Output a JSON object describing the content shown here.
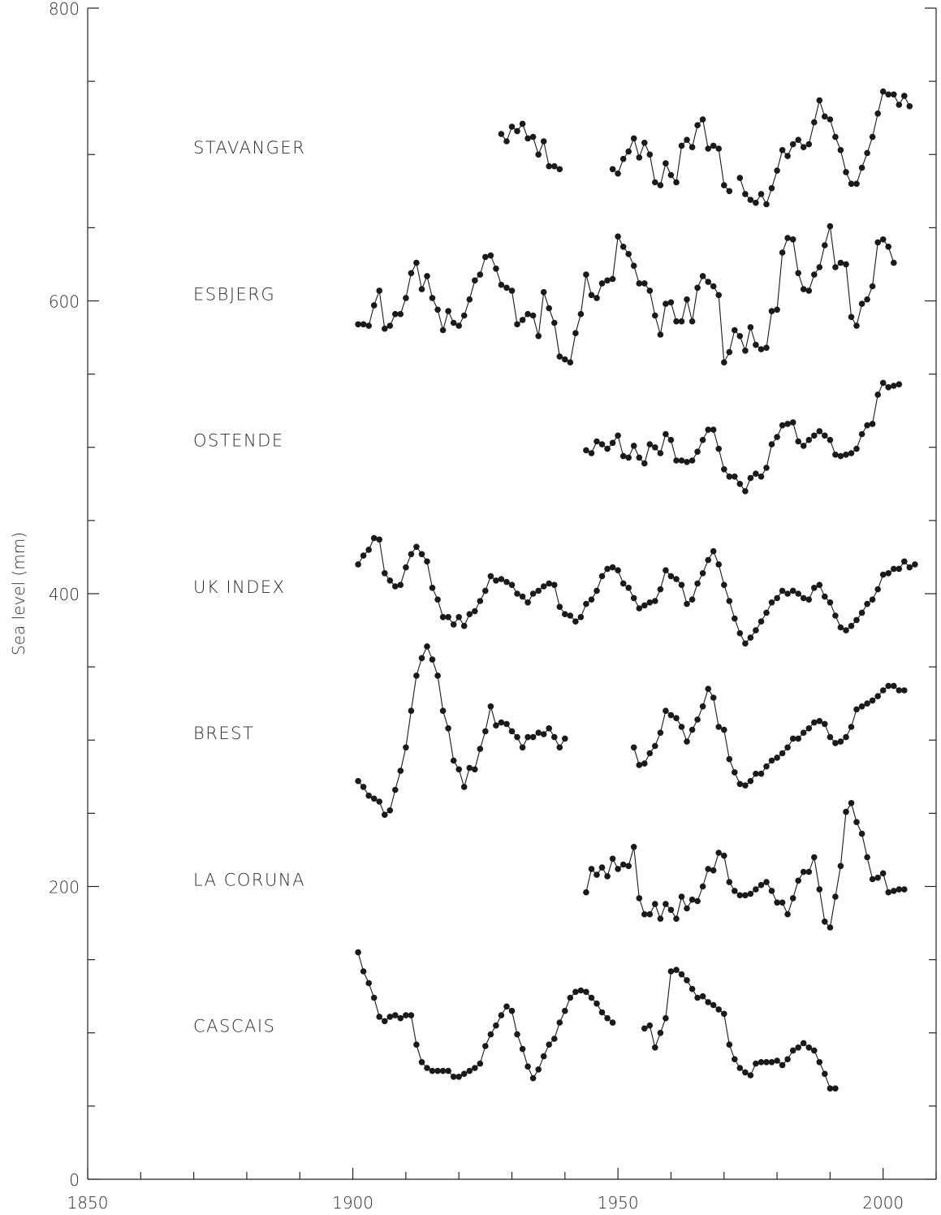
{
  "chart_data": {
    "type": "line",
    "title": "",
    "xlabel": "",
    "ylabel": "Sea level (mm)",
    "xlim": [
      1850,
      2010
    ],
    "ylim": [
      0,
      800
    ],
    "x_ticks": [
      1850,
      1900,
      1950,
      2000
    ],
    "y_ticks": [
      0,
      200,
      400,
      600,
      800
    ],
    "x_tick_labels": [
      "1850",
      "1900",
      "1950",
      "2000"
    ],
    "y_tick_labels": [
      "0",
      "200",
      "400",
      "600",
      "800"
    ],
    "grid": false,
    "marker": "filled-circle",
    "series": [
      {
        "name": "STAVANGER",
        "label_y": 705,
        "x": [
          1928,
          1929,
          1930,
          1931,
          1932,
          1933,
          1934,
          1935,
          1936,
          1937,
          1938,
          1939,
          null,
          1949,
          1950,
          1951,
          1952,
          1953,
          1954,
          1955,
          1956,
          1957,
          1958,
          1959,
          1960,
          1961,
          1962,
          1963,
          1964,
          1965,
          1966,
          1967,
          1968,
          1969,
          1970,
          1971,
          null,
          1973,
          1974,
          1975,
          1976,
          1977,
          1978,
          1979,
          1980,
          1981,
          1982,
          1983,
          1984,
          1985,
          1986,
          1987,
          1988,
          1989,
          1990,
          1991,
          1992,
          1993,
          1994,
          1995,
          1996,
          1997,
          1998,
          1999,
          2000,
          2001,
          2002,
          2003,
          2004,
          2005
        ],
        "values": [
          714,
          709,
          719,
          716,
          721,
          711,
          712,
          700,
          709,
          692,
          692,
          690,
          null,
          690,
          687,
          697,
          702,
          711,
          698,
          708,
          700,
          681,
          679,
          694,
          686,
          681,
          706,
          710,
          705,
          720,
          724,
          704,
          706,
          704,
          679,
          675,
          null,
          684,
          673,
          669,
          667,
          673,
          666,
          677,
          689,
          703,
          699,
          707,
          710,
          705,
          707,
          722,
          737,
          726,
          724,
          712,
          703,
          688,
          680,
          680,
          691,
          701,
          712,
          728,
          743,
          741,
          741,
          734,
          740,
          733
        ]
      },
      {
        "name": "ESBJERG",
        "label_y": 605,
        "x": [
          1901,
          1902,
          1903,
          1904,
          1905,
          1906,
          1907,
          1908,
          1909,
          1910,
          1911,
          1912,
          1913,
          1914,
          1915,
          1916,
          1917,
          1918,
          1919,
          1920,
          1921,
          1922,
          1923,
          1924,
          1925,
          1926,
          1927,
          1928,
          1929,
          1930,
          1931,
          1932,
          1933,
          1934,
          1935,
          1936,
          1937,
          1938,
          1939,
          1940,
          1941,
          1942,
          1943,
          1944,
          1945,
          1946,
          1947,
          1948,
          1949,
          1950,
          1951,
          1952,
          1953,
          1954,
          1955,
          1956,
          1957,
          1958,
          1959,
          1960,
          1961,
          1962,
          1963,
          1964,
          1965,
          1966,
          1967,
          1968,
          1969,
          1970,
          1971,
          1972,
          1973,
          1974,
          1975,
          1976,
          1977,
          1978,
          1979,
          1980,
          1981,
          1982,
          1983,
          1984,
          1985,
          1986,
          1987,
          1988,
          1989,
          1990,
          1991,
          1992,
          1993,
          1994,
          1995,
          1996,
          1997,
          1998,
          1999,
          2000,
          2001,
          2002
        ],
        "values": [
          584,
          584,
          583,
          597,
          607,
          581,
          583,
          591,
          591,
          602,
          619,
          626,
          608,
          617,
          602,
          594,
          580,
          593,
          585,
          583,
          590,
          601,
          614,
          618,
          630,
          631,
          622,
          611,
          609,
          607,
          584,
          587,
          591,
          590,
          576,
          606,
          595,
          585,
          562,
          560,
          558,
          578,
          591,
          618,
          604,
          602,
          612,
          614,
          615,
          644,
          637,
          632,
          624,
          612,
          612,
          607,
          590,
          577,
          598,
          599,
          586,
          586,
          601,
          586,
          609,
          617,
          613,
          610,
          604,
          558,
          565,
          580,
          576,
          566,
          582,
          570,
          567,
          568,
          593,
          594,
          633,
          643,
          642,
          619,
          608,
          607,
          618,
          623,
          638,
          651,
          623,
          626,
          625,
          589,
          583,
          598,
          601,
          610,
          640,
          642,
          637,
          626
        ]
      },
      {
        "name": "OSTENDE",
        "label_y": 505,
        "x": [
          1944,
          1945,
          1946,
          1947,
          1948,
          1949,
          1950,
          1951,
          1952,
          1953,
          1954,
          1955,
          1956,
          1957,
          1958,
          1959,
          1960,
          1961,
          1962,
          1963,
          1964,
          1965,
          1966,
          1967,
          1968,
          1969,
          1970,
          1971,
          1972,
          1973,
          1974,
          1975,
          1976,
          1977,
          1978,
          1979,
          1980,
          1981,
          1982,
          1983,
          1984,
          1985,
          1986,
          1987,
          1988,
          1989,
          1990,
          1991,
          1992,
          1993,
          1994,
          1995,
          1996,
          1997,
          1998,
          1999,
          2000,
          2001,
          2002,
          2003
        ],
        "values": [
          498,
          496,
          504,
          502,
          499,
          503,
          508,
          494,
          493,
          501,
          493,
          489,
          502,
          500,
          496,
          509,
          505,
          491,
          491,
          490,
          491,
          497,
          505,
          512,
          512,
          499,
          485,
          480,
          480,
          475,
          470,
          479,
          482,
          480,
          486,
          502,
          507,
          515,
          516,
          517,
          504,
          501,
          505,
          508,
          511,
          508,
          505,
          495,
          494,
          495,
          496,
          499,
          509,
          515,
          516,
          536,
          544,
          541,
          542,
          543
        ]
      },
      {
        "name": "UK INDEX",
        "label_y": 405,
        "x": [
          1901,
          1902,
          1903,
          1904,
          1905,
          1906,
          1907,
          1908,
          1909,
          1910,
          1911,
          1912,
          1913,
          1914,
          1915,
          1916,
          1917,
          1918,
          1919,
          1920,
          1921,
          1922,
          1923,
          1924,
          1925,
          1926,
          1927,
          1928,
          1929,
          1930,
          1931,
          1932,
          1933,
          1934,
          1935,
          1936,
          1937,
          1938,
          1939,
          1940,
          1941,
          1942,
          1943,
          1944,
          1945,
          1946,
          1947,
          1948,
          1949,
          1950,
          1951,
          1952,
          1953,
          1954,
          1955,
          1956,
          1957,
          1958,
          1959,
          1960,
          1961,
          1962,
          1963,
          1964,
          1965,
          1966,
          1967,
          1968,
          1969,
          1970,
          1971,
          1972,
          1973,
          1974,
          1975,
          1976,
          1977,
          1978,
          1979,
          1980,
          1981,
          1982,
          1983,
          1984,
          1985,
          1986,
          1987,
          1988,
          1989,
          1990,
          1991,
          1992,
          1993,
          1994,
          1995,
          1996,
          1997,
          1998,
          1999,
          2000,
          2001,
          2002,
          2003,
          2004,
          2005,
          2006
        ],
        "values": [
          420,
          426,
          430,
          438,
          437,
          414,
          409,
          405,
          406,
          418,
          427,
          432,
          427,
          422,
          404,
          396,
          384,
          384,
          379,
          384,
          378,
          386,
          388,
          395,
          402,
          412,
          409,
          410,
          408,
          406,
          400,
          398,
          394,
          400,
          402,
          405,
          407,
          406,
          391,
          386,
          385,
          381,
          384,
          393,
          396,
          402,
          412,
          417,
          418,
          416,
          407,
          404,
          397,
          390,
          392,
          394,
          395,
          403,
          416,
          412,
          410,
          406,
          393,
          396,
          407,
          414,
          423,
          429,
          420,
          406,
          395,
          383,
          373,
          366,
          370,
          375,
          381,
          387,
          394,
          397,
          402,
          400,
          402,
          400,
          397,
          396,
          404,
          406,
          398,
          394,
          385,
          377,
          375,
          378,
          382,
          387,
          393,
          396,
          403,
          413,
          414,
          417,
          417,
          422,
          418,
          420
        ]
      },
      {
        "name": "BREST",
        "label_y": 305,
        "x": [
          1901,
          1902,
          1903,
          1904,
          1905,
          1906,
          1907,
          1908,
          1909,
          1910,
          1911,
          1912,
          1913,
          1914,
          1915,
          1916,
          1917,
          1918,
          1919,
          1920,
          1921,
          1922,
          1923,
          1924,
          1925,
          1926,
          1927,
          1928,
          1929,
          1930,
          1931,
          1932,
          1933,
          1934,
          1935,
          1936,
          1937,
          1938,
          1939,
          1940,
          1941,
          null,
          1953,
          1954,
          1955,
          1956,
          1957,
          1958,
          1959,
          1960,
          1961,
          1962,
          1963,
          1964,
          1965,
          1966,
          1967,
          1968,
          1969,
          1970,
          1971,
          1972,
          1973,
          1974,
          1975,
          1976,
          1977,
          1978,
          1979,
          1980,
          1981,
          1982,
          1983,
          1984,
          1985,
          1986,
          1987,
          1988,
          1989,
          1990,
          1991,
          1992,
          1993,
          1994,
          1995,
          1996,
          1997,
          1998,
          1999,
          2000,
          2001,
          2002,
          2003,
          2004
        ],
        "values": [
          272,
          268,
          262,
          260,
          258,
          249,
          252,
          266,
          279,
          295,
          320,
          344,
          356,
          364,
          355,
          344,
          320,
          308,
          286,
          280,
          268,
          281,
          280,
          294,
          306,
          323,
          310,
          312,
          311,
          306,
          302,
          295,
          302,
          302,
          305,
          304,
          308,
          302,
          295,
          301,
          null,
          null,
          295,
          283,
          284,
          291,
          296,
          305,
          320,
          317,
          315,
          309,
          299,
          307,
          314,
          323,
          335,
          329,
          309,
          307,
          287,
          278,
          270,
          269,
          272,
          277,
          277,
          282,
          286,
          288,
          291,
          295,
          301,
          301,
          305,
          308,
          312,
          313,
          311,
          302,
          298,
          299,
          302,
          309,
          321,
          323,
          325,
          327,
          330,
          334,
          337,
          337,
          334,
          334
        ]
      },
      {
        "name": "LA CORUNA",
        "label_y": 205,
        "x": [
          1944,
          1945,
          1946,
          1947,
          1948,
          1949,
          1950,
          1951,
          1952,
          1953,
          1954,
          1955,
          1956,
          1957,
          1958,
          1959,
          1960,
          1961,
          1962,
          1963,
          1964,
          1965,
          1966,
          1967,
          1968,
          1969,
          1970,
          1971,
          1972,
          1973,
          1974,
          1975,
          1976,
          1977,
          1978,
          1979,
          1980,
          1981,
          1982,
          1983,
          1984,
          1985,
          1986,
          1987,
          1988,
          1989,
          1990,
          1991,
          1992,
          1993,
          1994,
          1995,
          1996,
          1997,
          1998,
          1999,
          2000,
          2001,
          2002,
          2003,
          2004
        ],
        "values": [
          196,
          212,
          208,
          213,
          207,
          219,
          212,
          215,
          214,
          227,
          192,
          181,
          181,
          188,
          178,
          188,
          184,
          178,
          193,
          185,
          191,
          190,
          200,
          212,
          211,
          223,
          221,
          203,
          197,
          194,
          194,
          195,
          198,
          201,
          203,
          197,
          189,
          189,
          181,
          192,
          204,
          210,
          210,
          220,
          198,
          176,
          172,
          193,
          214,
          251,
          257,
          244,
          236,
          220,
          205,
          206,
          209,
          196,
          197,
          198,
          198
        ]
      },
      {
        "name": "CASCAIS",
        "label_y": 105,
        "x": [
          1901,
          1902,
          1903,
          1904,
          1905,
          1906,
          1907,
          1908,
          1909,
          1910,
          1911,
          1912,
          1913,
          1914,
          1915,
          1916,
          1917,
          1918,
          1919,
          1920,
          1921,
          1922,
          1923,
          1924,
          1925,
          1926,
          1927,
          1928,
          1929,
          1930,
          1931,
          1932,
          1933,
          1934,
          1935,
          1936,
          1937,
          1938,
          1939,
          1940,
          1941,
          1942,
          1943,
          1944,
          1945,
          1946,
          1947,
          1948,
          1949,
          1950,
          1951,
          null,
          1955,
          1956,
          1957,
          1958,
          1959,
          1960,
          1961,
          1962,
          1963,
          1964,
          1965,
          1966,
          1967,
          1968,
          1969,
          1970,
          1971,
          1972,
          1973,
          1974,
          1975,
          1976,
          1977,
          1978,
          1979,
          1980,
          1981,
          1982,
          1983,
          1984,
          1985,
          1986,
          1987,
          1988,
          1989,
          1990,
          1991,
          1992,
          1993
        ],
        "values": [
          155,
          142,
          134,
          124,
          111,
          108,
          111,
          112,
          110,
          112,
          112,
          92,
          80,
          76,
          74,
          74,
          74,
          74,
          70,
          70,
          72,
          74,
          76,
          79,
          91,
          99,
          105,
          112,
          118,
          115,
          99,
          89,
          77,
          69,
          75,
          84,
          92,
          96,
          107,
          115,
          124,
          128,
          129,
          128,
          124,
          120,
          114,
          110,
          107,
          null,
          null,
          115,
          103,
          105,
          90,
          100,
          110,
          142,
          143,
          140,
          136,
          130,
          124,
          125,
          121,
          119,
          116,
          113,
          92,
          82,
          76,
          73,
          71,
          79,
          80,
          80,
          80,
          81,
          78,
          82,
          88,
          90,
          93,
          90,
          88,
          80,
          72,
          62,
          62,
          null,
          null
        ]
      }
    ]
  }
}
